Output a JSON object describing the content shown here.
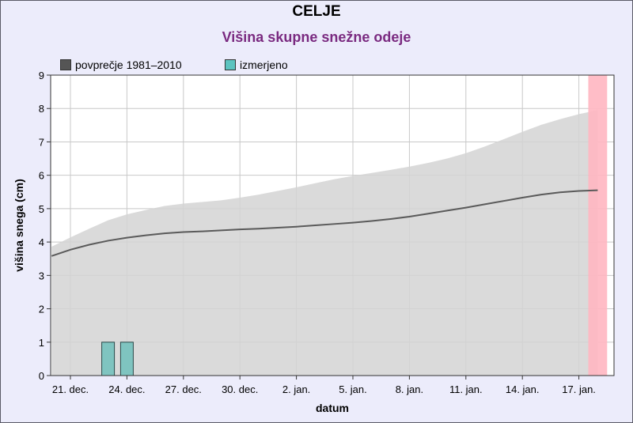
{
  "colors": {
    "background": "#ececfb",
    "plot_bg": "#ffffff",
    "grid": "#c8c8c8",
    "band": "#d3d3d3",
    "avg_line": "#5a5a5a",
    "measured": "#7fc4c0",
    "measured_border": "#2a4a4a",
    "today_band": "#ffb6c1",
    "title": "#000000",
    "subtitle": "#7a2a80"
  },
  "chart_data": {
    "type": "line",
    "title": "CELJE",
    "subtitle": "Višina skupne snežne odeje",
    "xlabel": "datum",
    "ylabel": "višina snega (cm)",
    "ylim": [
      0,
      9
    ],
    "yticks": [
      0,
      1,
      2,
      3,
      4,
      5,
      6,
      7,
      8,
      9
    ],
    "x_day_range": [
      19.5,
      48
    ],
    "xticks": [
      {
        "day": 21,
        "label": "21. dec."
      },
      {
        "day": 24,
        "label": "24. dec."
      },
      {
        "day": 27,
        "label": "27. dec."
      },
      {
        "day": 30,
        "label": "30. dec."
      },
      {
        "day": 33,
        "label": "2. jan."
      },
      {
        "day": 36,
        "label": "5. jan."
      },
      {
        "day": 39,
        "label": "8. jan."
      },
      {
        "day": 42,
        "label": "11. jan."
      },
      {
        "day": 45,
        "label": "14. jan."
      },
      {
        "day": 48,
        "label": "17. jan."
      }
    ],
    "legend": [
      {
        "name": "povprečje 1981–2010",
        "color": "#555555"
      },
      {
        "name": "izmerjeno",
        "color": "#5cc4c0"
      }
    ],
    "average": {
      "name": "povprečje 1981–2010",
      "x": [
        20,
        21,
        22,
        23,
        24,
        25,
        26,
        27,
        28,
        29,
        30,
        31,
        32,
        33,
        34,
        35,
        36,
        37,
        38,
        39,
        40,
        41,
        42,
        43,
        44,
        45,
        46,
        47,
        48,
        49
      ],
      "y": [
        3.58,
        3.77,
        3.92,
        4.04,
        4.13,
        4.2,
        4.26,
        4.3,
        4.32,
        4.35,
        4.38,
        4.4,
        4.43,
        4.46,
        4.5,
        4.54,
        4.58,
        4.63,
        4.69,
        4.76,
        4.85,
        4.94,
        5.03,
        5.13,
        5.23,
        5.33,
        5.42,
        5.49,
        5.53,
        5.55
      ]
    },
    "band": {
      "x": [
        20,
        21,
        22,
        23,
        24,
        25,
        26,
        27,
        28,
        29,
        30,
        31,
        32,
        33,
        34,
        35,
        36,
        37,
        38,
        39,
        40,
        41,
        42,
        43,
        44,
        45,
        46,
        47,
        48,
        49
      ],
      "lower": [
        0,
        0,
        0,
        0,
        0,
        0,
        0,
        0,
        0,
        0,
        0,
        0,
        0,
        0,
        0,
        0,
        0,
        0,
        0,
        0,
        0,
        0,
        0,
        0,
        0,
        0,
        0,
        0,
        0,
        0
      ],
      "upper": [
        3.86,
        4.14,
        4.4,
        4.65,
        4.83,
        4.96,
        5.08,
        5.15,
        5.2,
        5.25,
        5.33,
        5.42,
        5.53,
        5.64,
        5.76,
        5.88,
        5.98,
        6.07,
        6.16,
        6.26,
        6.37,
        6.5,
        6.66,
        6.86,
        7.08,
        7.3,
        7.51,
        7.68,
        7.83,
        7.95
      ]
    },
    "measured": {
      "name": "izmerjeno",
      "x": [
        23,
        24
      ],
      "y": [
        1,
        1
      ]
    },
    "today_band_days": [
      48.5,
      49.5
    ]
  }
}
